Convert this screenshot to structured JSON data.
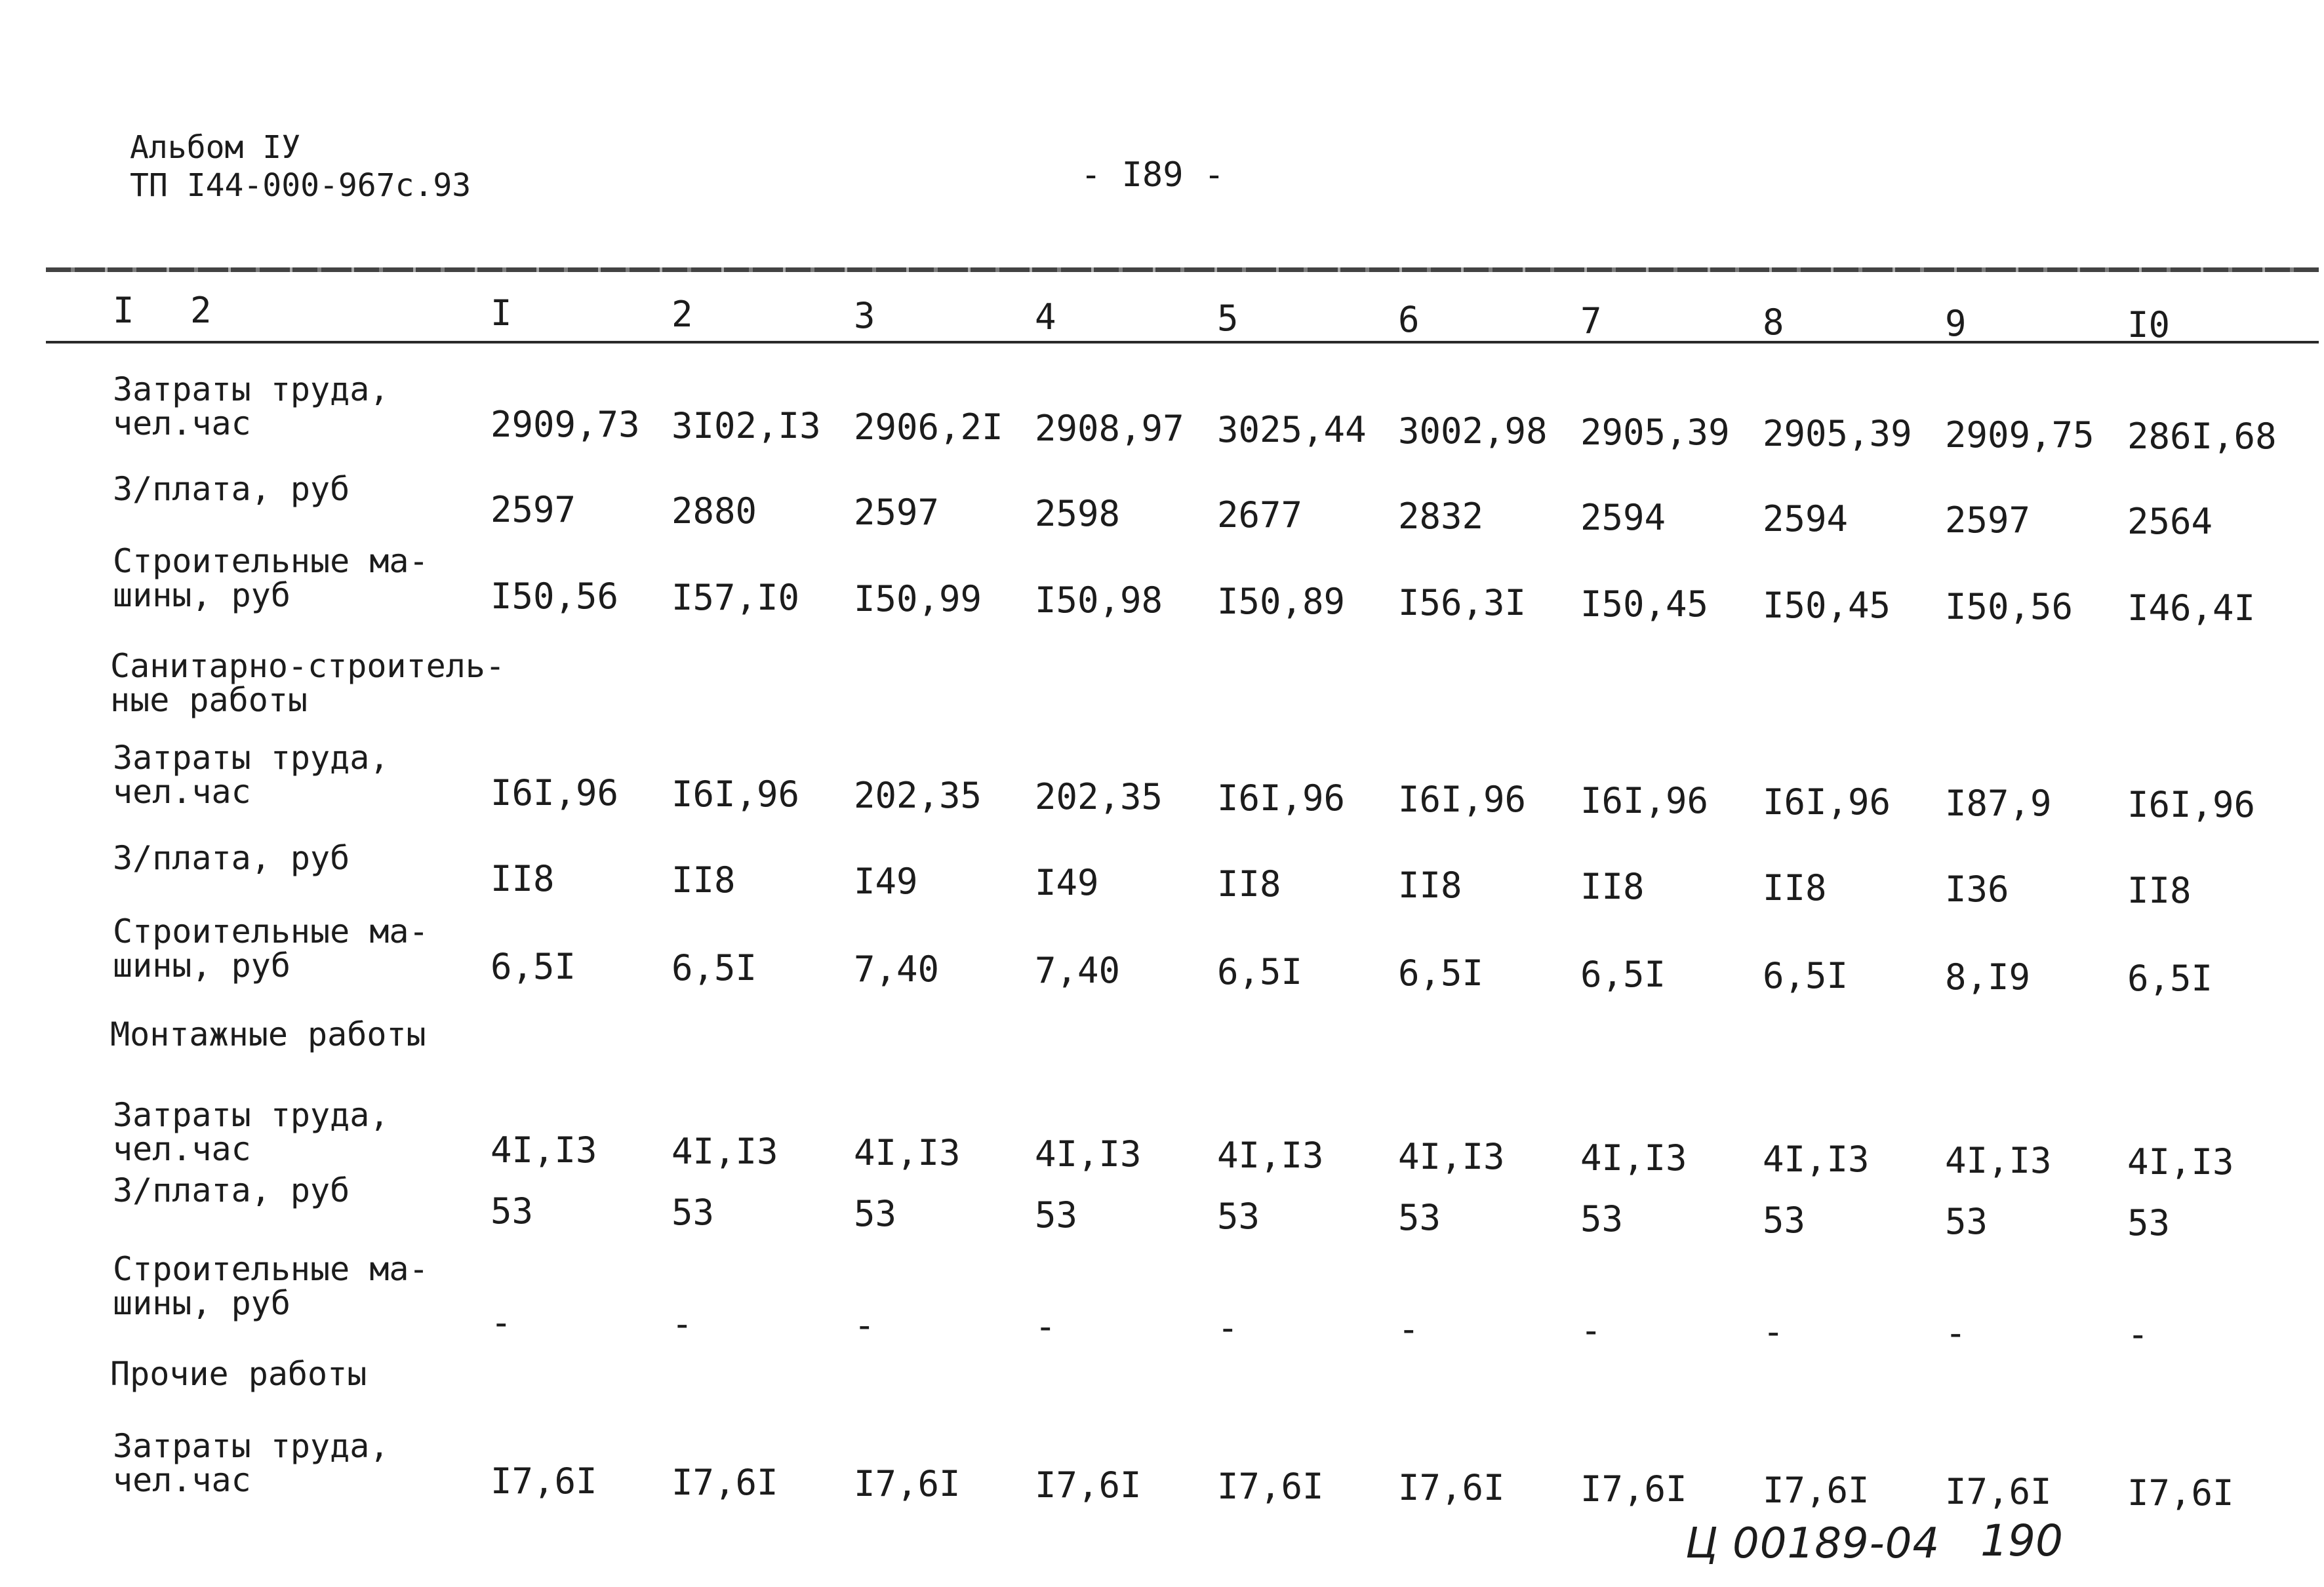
{
  "header": {
    "album": "Альбом IУ",
    "document": "ТП I44-000-967с.93",
    "page_number": "- I89 -"
  },
  "columns": {
    "lead": [
      "I",
      "2"
    ],
    "numbers": [
      "I",
      "2",
      "3",
      "4",
      "5",
      "6",
      "7",
      "8",
      "9",
      "I0"
    ]
  },
  "rows": [
    {
      "label": "Затраты труда,\nчел.час",
      "values": [
        "2909,73",
        "3I02,I3",
        "2906,2I",
        "2908,97",
        "3025,44",
        "3002,98",
        "2905,39",
        "2905,39",
        "2909,75",
        "286I,68"
      ]
    },
    {
      "label": "З/плата, руб",
      "values": [
        "2597",
        "2880",
        "2597",
        "2598",
        "2677",
        "2832",
        "2594",
        "2594",
        "2597",
        "2564"
      ]
    },
    {
      "label": "Строительные ма-\nшины, руб",
      "values": [
        "I50,56",
        "I57,I0",
        "I50,99",
        "I50,98",
        "I50,89",
        "I56,3I",
        "I50,45",
        "I50,45",
        "I50,56",
        "I46,4I"
      ]
    },
    {
      "section": "Санитарно-строитель-\nные работы"
    },
    {
      "label": "Затраты труда,\nчел.час",
      "values": [
        "I6I,96",
        "I6I,96",
        "202,35",
        "202,35",
        "I6I,96",
        "I6I,96",
        "I6I,96",
        "I6I,96",
        "I87,9",
        "I6I,96"
      ]
    },
    {
      "label": "З/плата, руб",
      "values": [
        "II8",
        "II8",
        "I49",
        "I49",
        "II8",
        "II8",
        "II8",
        "II8",
        "I36",
        "II8"
      ]
    },
    {
      "label": "Строительные ма-\nшины, руб",
      "values": [
        "6,5I",
        "6,5I",
        "7,40",
        "7,40",
        "6,5I",
        "6,5I",
        "6,5I",
        "6,5I",
        "8,I9",
        "6,5I"
      ]
    },
    {
      "section": "Монтажные работы"
    },
    {
      "label": "Затраты труда,\nчел.час",
      "values": [
        "4I,I3",
        "4I,I3",
        "4I,I3",
        "4I,I3",
        "4I,I3",
        "4I,I3",
        "4I,I3",
        "4I,I3",
        "4I,I3",
        "4I,I3"
      ]
    },
    {
      "label": "З/плата, руб",
      "values": [
        "53",
        "53",
        "53",
        "53",
        "53",
        "53",
        "53",
        "53",
        "53",
        "53"
      ]
    },
    {
      "label": "Строительные ма-\nшины, руб",
      "values": [
        "-",
        "-",
        "-",
        "-",
        "-",
        "-",
        "-",
        "-",
        "-",
        "-"
      ]
    },
    {
      "section": "Прочие работы"
    },
    {
      "label": "Затраты труда,\nчел.час",
      "values": [
        "I7,6I",
        "I7,6I",
        "I7,6I",
        "I7,6I",
        "I7,6I",
        "I7,6I",
        "I7,6I",
        "I7,6I",
        "I7,6I",
        "I7,6I"
      ]
    }
  ],
  "footer": {
    "stamp": "Ц 00189-04",
    "sheet": "190"
  }
}
